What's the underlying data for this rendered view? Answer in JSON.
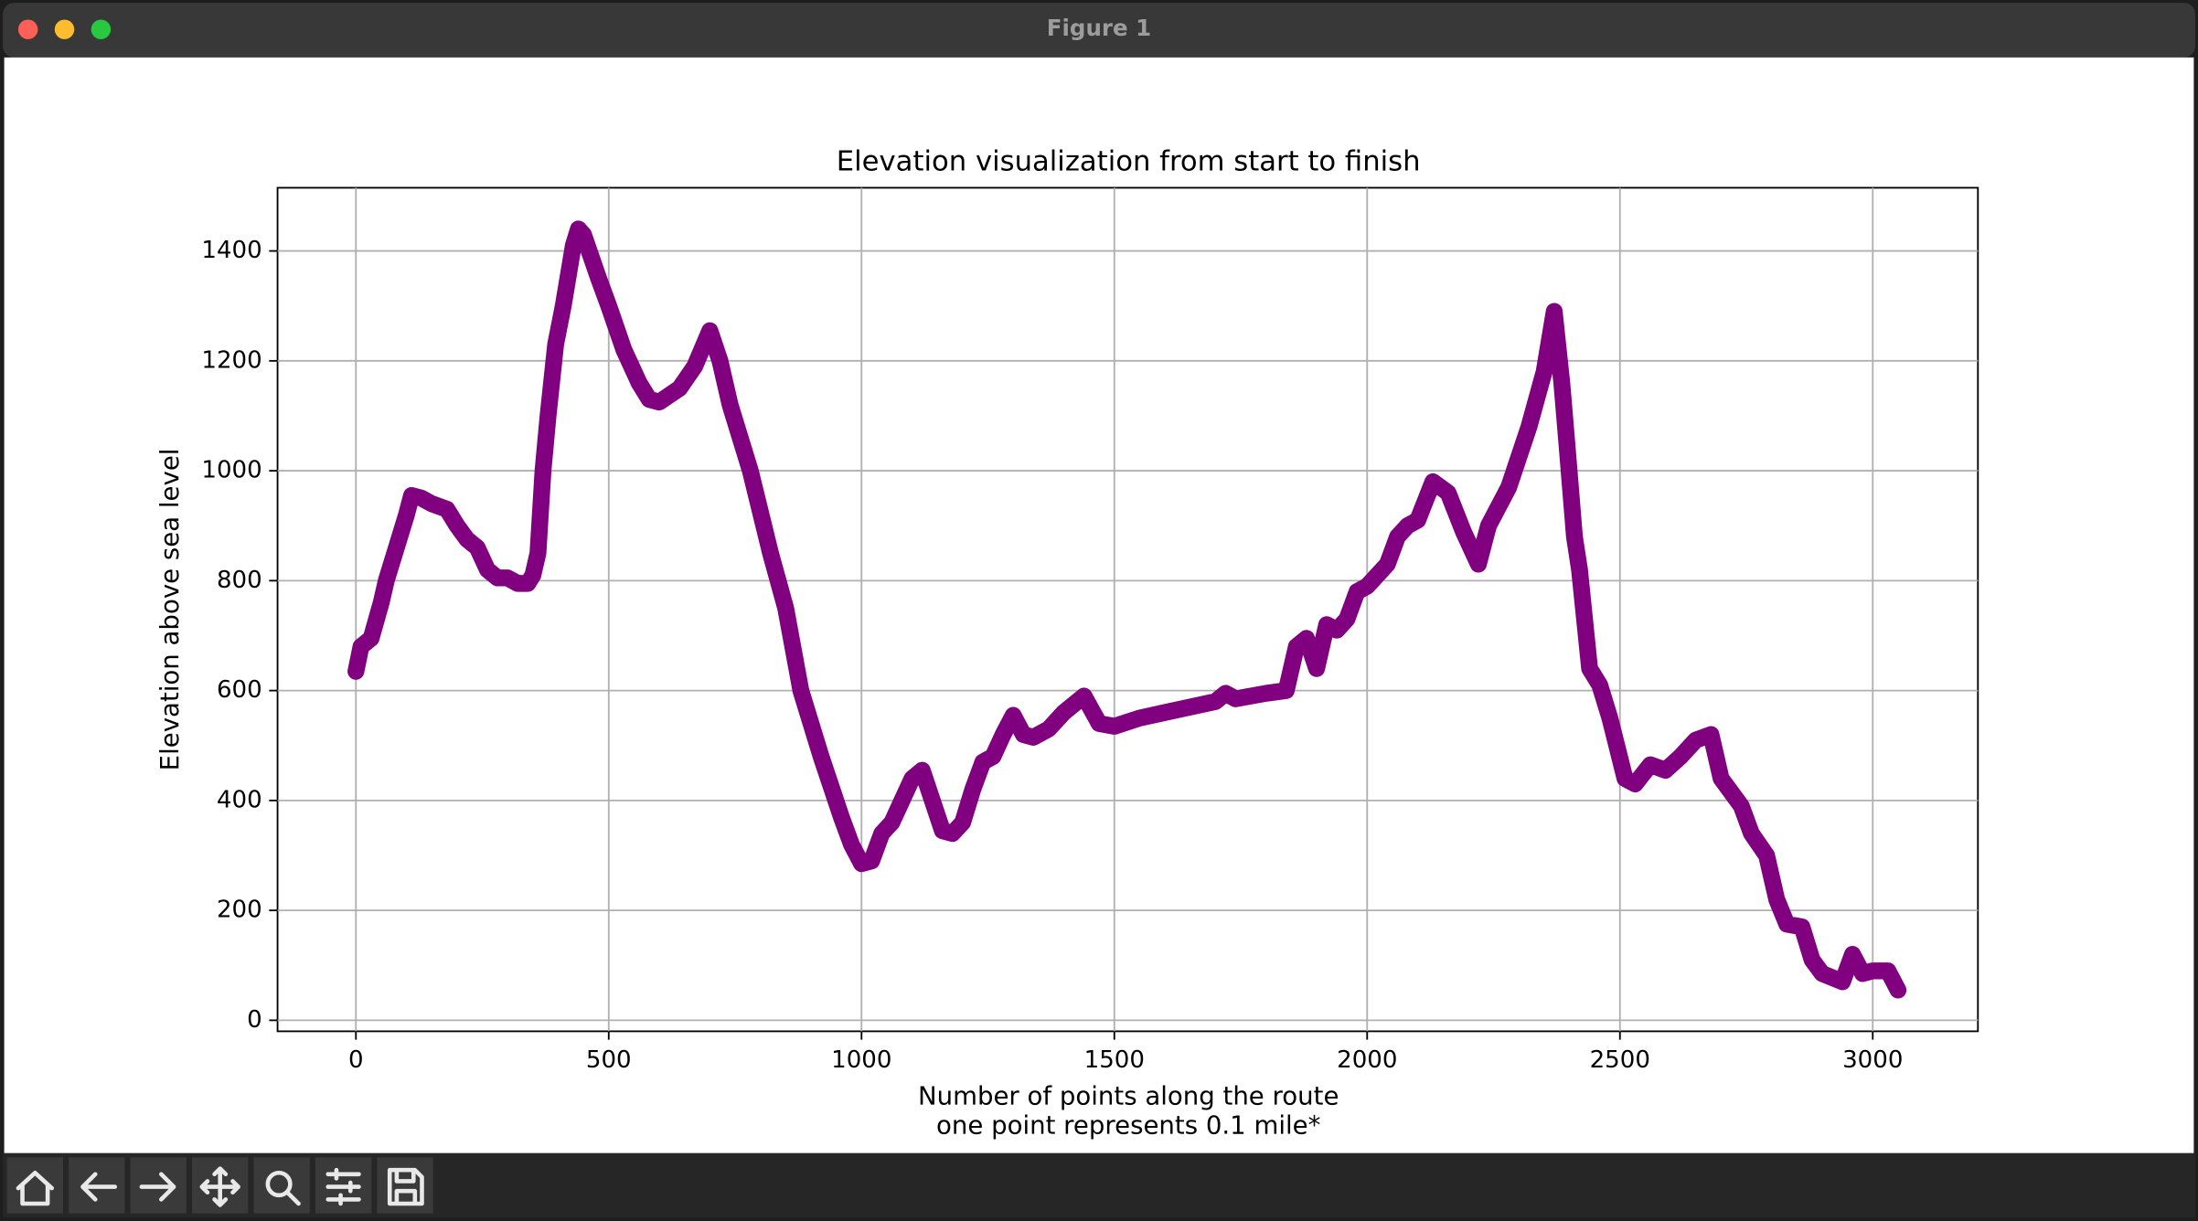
{
  "window": {
    "title": "Figure 1"
  },
  "chart_data": {
    "type": "line",
    "title": "Elevation visualization from start to finish",
    "xlabel": [
      "Number of points along the route",
      "one point represents 0.1 mile*"
    ],
    "ylabel": "Elevation above sea level",
    "color": "#800080",
    "grid": true,
    "xlim": [
      -155,
      3208
    ],
    "ylim": [
      -20,
      1515
    ],
    "xticks": [
      0,
      500,
      1000,
      1500,
      2000,
      2500,
      3000
    ],
    "yticks": [
      0,
      200,
      400,
      600,
      800,
      1000,
      1200,
      1400
    ],
    "x": [
      0,
      10,
      30,
      50,
      60,
      80,
      100,
      110,
      130,
      150,
      180,
      200,
      220,
      240,
      260,
      280,
      300,
      320,
      340,
      350,
      360,
      370,
      380,
      395,
      410,
      430,
      440,
      450,
      480,
      500,
      530,
      560,
      580,
      600,
      640,
      670,
      700,
      720,
      740,
      780,
      820,
      850,
      880,
      920,
      960,
      980,
      1000,
      1020,
      1040,
      1060,
      1080,
      1100,
      1120,
      1140,
      1160,
      1180,
      1200,
      1220,
      1240,
      1260,
      1280,
      1300,
      1320,
      1340,
      1370,
      1400,
      1420,
      1440,
      1470,
      1500,
      1550,
      1600,
      1650,
      1700,
      1720,
      1740,
      1800,
      1840,
      1860,
      1880,
      1900,
      1920,
      1940,
      1960,
      1980,
      2000,
      2040,
      2060,
      2080,
      2100,
      2130,
      2160,
      2190,
      2220,
      2240,
      2280,
      2320,
      2350,
      2370,
      2385,
      2395,
      2410,
      2420,
      2440,
      2460,
      2480,
      2510,
      2530,
      2560,
      2590,
      2620,
      2650,
      2680,
      2700,
      2740,
      2760,
      2790,
      2810,
      2830,
      2860,
      2880,
      2900,
      2940,
      2960,
      2980,
      3000,
      3030,
      3050
    ],
    "values": [
      635,
      680,
      695,
      760,
      800,
      860,
      920,
      955,
      950,
      940,
      930,
      900,
      875,
      860,
      820,
      805,
      805,
      795,
      795,
      810,
      850,
      1000,
      1100,
      1230,
      1300,
      1410,
      1440,
      1430,
      1350,
      1300,
      1220,
      1160,
      1130,
      1125,
      1150,
      1190,
      1255,
      1200,
      1120,
      1000,
      850,
      750,
      600,
      480,
      370,
      320,
      285,
      290,
      340,
      360,
      400,
      440,
      455,
      400,
      345,
      340,
      360,
      420,
      470,
      480,
      520,
      555,
      520,
      515,
      530,
      560,
      575,
      590,
      540,
      535,
      550,
      560,
      570,
      580,
      595,
      585,
      595,
      600,
      680,
      695,
      640,
      720,
      710,
      730,
      780,
      790,
      830,
      880,
      900,
      910,
      980,
      960,
      890,
      830,
      900,
      970,
      1080,
      1180,
      1290,
      1160,
      1050,
      880,
      820,
      640,
      610,
      550,
      440,
      430,
      465,
      455,
      480,
      510,
      520,
      440,
      390,
      340,
      300,
      220,
      175,
      170,
      110,
      85,
      70,
      120,
      85,
      90,
      90,
      55
    ]
  }
}
